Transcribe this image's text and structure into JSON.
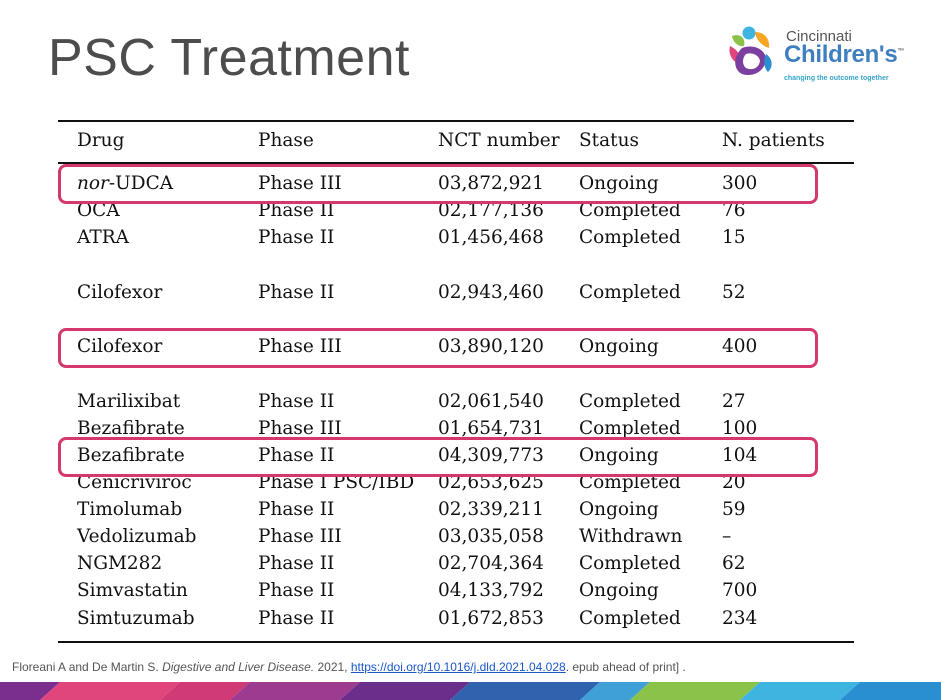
{
  "slide": {
    "title": "PSC Treatment"
  },
  "logo": {
    "line1": "Cincinnati",
    "line2": "Children's",
    "tm": "™",
    "tagline": "changing the outcome together"
  },
  "table": {
    "headers": [
      "Drug",
      "Phase",
      "NCT number",
      "Status",
      "N. patients"
    ],
    "rows": [
      {
        "drug_prefix": "nor",
        "drug": "-UDCA",
        "phase": "Phase III",
        "nct": "03,872,921",
        "status": "Ongoing",
        "n": "300"
      },
      {
        "drug_prefix": "",
        "drug": "OCA",
        "phase": "Phase II",
        "nct": "02,177,136",
        "status": "Completed",
        "n": "76"
      },
      {
        "drug_prefix": "",
        "drug": "ATRA",
        "phase": "Phase II",
        "nct": "01,456,468",
        "status": "Completed",
        "n": "15"
      },
      {
        "drug_prefix": "",
        "drug": "Cilofexor",
        "phase": "Phase II",
        "nct": "02,943,460",
        "status": "Completed",
        "n": "52"
      },
      {
        "drug_prefix": "",
        "drug": "Cilofexor",
        "phase": "Phase III",
        "nct": "03,890,120",
        "status": "Ongoing",
        "n": "400"
      },
      {
        "drug_prefix": "",
        "drug": "Marilixibat",
        "phase": "Phase II",
        "nct": "02,061,540",
        "status": "Completed",
        "n": "27"
      },
      {
        "drug_prefix": "",
        "drug": "Bezafibrate",
        "phase": "Phase III",
        "nct": "01,654,731",
        "status": "Completed",
        "n": "100"
      },
      {
        "drug_prefix": "",
        "drug": "Bezafibrate",
        "phase": "Phase II",
        "nct": "04,309,773",
        "status": "Ongoing",
        "n": "104"
      },
      {
        "drug_prefix": "",
        "drug": "Cenicriviroc",
        "phase": "Phase I PSC/IBD",
        "nct": "02,653,625",
        "status": "Completed",
        "n": "20"
      },
      {
        "drug_prefix": "",
        "drug": "Timolumab",
        "phase": "Phase II",
        "nct": "02,339,211",
        "status": "Ongoing",
        "n": "59"
      },
      {
        "drug_prefix": "",
        "drug": "Vedolizumab",
        "phase": "Phase III",
        "nct": "03,035,058",
        "status": "Withdrawn",
        "n": "–"
      },
      {
        "drug_prefix": "",
        "drug": "NGM282",
        "phase": "Phase II",
        "nct": "02,704,364",
        "status": "Completed",
        "n": "62"
      },
      {
        "drug_prefix": "",
        "drug": "Simvastatin",
        "phase": "Phase II",
        "nct": "04,133,792",
        "status": "Ongoing",
        "n": "700"
      },
      {
        "drug_prefix": "",
        "drug": "Simtuzumab",
        "phase": "Phase II",
        "nct": "01,672,853",
        "status": "Completed",
        "n": "234"
      }
    ]
  },
  "citation": {
    "authors": "Floreani A and De Martin S. ",
    "journal": "Digestive and Liver Disease.",
    "year": " 2021, ",
    "link": "https://doi.org/10.1016/j.dld.2021.04.028",
    "tail": ". epub ahead of print] ."
  },
  "colors": {
    "highlight": "#d5376f",
    "title": "#4d4d4d",
    "link": "#1a56c8"
  }
}
